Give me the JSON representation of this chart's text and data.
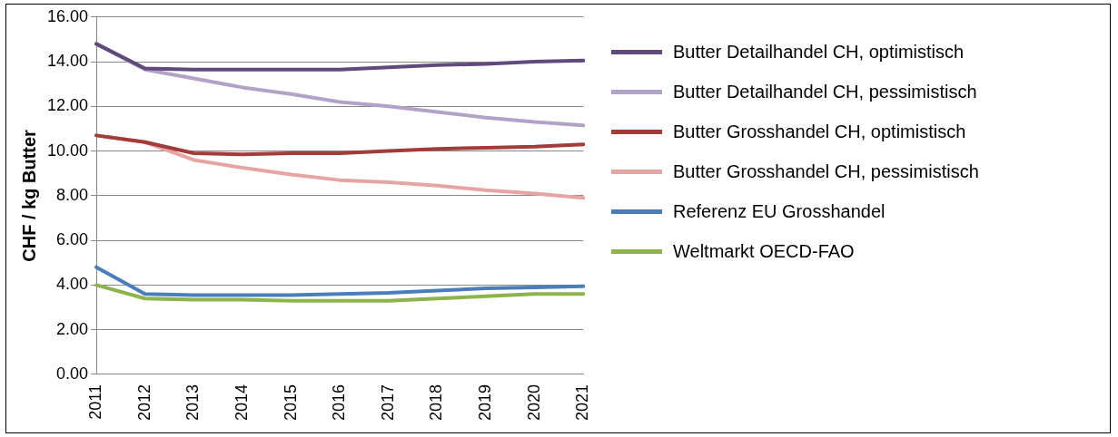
{
  "chart_data": {
    "type": "line",
    "ylabel": "CHF / kg Butter",
    "categories": [
      "2011",
      "2012",
      "2013",
      "2014",
      "2015",
      "2016",
      "2017",
      "2018",
      "2019",
      "2020",
      "2021"
    ],
    "series": [
      {
        "name": "Butter Detailhandel CH, optimistisch",
        "color": "#604a7b",
        "values": [
          14.8,
          13.7,
          13.65,
          13.65,
          13.65,
          13.65,
          13.75,
          13.85,
          13.9,
          14.0,
          14.05
        ]
      },
      {
        "name": "Butter Detailhandel CH, pessimistisch",
        "color": "#b3a2c7",
        "values": [
          14.8,
          13.65,
          13.25,
          12.85,
          12.55,
          12.2,
          12.0,
          11.75,
          11.5,
          11.3,
          11.15
        ]
      },
      {
        "name": "Butter Grosshandel CH, optimistisch",
        "color": "#a33b38",
        "values": [
          10.7,
          10.4,
          9.9,
          9.85,
          9.9,
          9.9,
          10.0,
          10.1,
          10.15,
          10.2,
          10.3
        ]
      },
      {
        "name": "Butter Grosshandel CH, pessimistisch",
        "color": "#e6a5a3",
        "values": [
          10.7,
          10.4,
          9.6,
          9.25,
          8.95,
          8.7,
          8.6,
          8.45,
          8.25,
          8.1,
          7.9
        ]
      },
      {
        "name": "Referenz EU Grosshandel",
        "color": "#4a7ebb",
        "values": [
          4.8,
          3.6,
          3.55,
          3.55,
          3.55,
          3.6,
          3.65,
          3.75,
          3.85,
          3.9,
          3.95
        ]
      },
      {
        "name": "Weltmarkt OECD-FAO",
        "color": "#8db34b",
        "values": [
          4.0,
          3.4,
          3.35,
          3.35,
          3.3,
          3.3,
          3.3,
          3.4,
          3.5,
          3.6,
          3.6
        ]
      }
    ],
    "ylim": [
      0,
      16
    ],
    "yticks": [
      {
        "value": 0,
        "label": "0.00"
      },
      {
        "value": 2,
        "label": "2.00"
      },
      {
        "value": 4,
        "label": "4.00"
      },
      {
        "value": 6,
        "label": "6.00"
      },
      {
        "value": 8,
        "label": "8.00"
      },
      {
        "value": 10,
        "label": "10.00"
      },
      {
        "value": 12,
        "label": "12.00"
      },
      {
        "value": 14,
        "label": "14.00"
      },
      {
        "value": 16,
        "label": "16.00"
      }
    ],
    "grid": "y",
    "legend": "right",
    "marker": "none",
    "line_style": "solid"
  }
}
